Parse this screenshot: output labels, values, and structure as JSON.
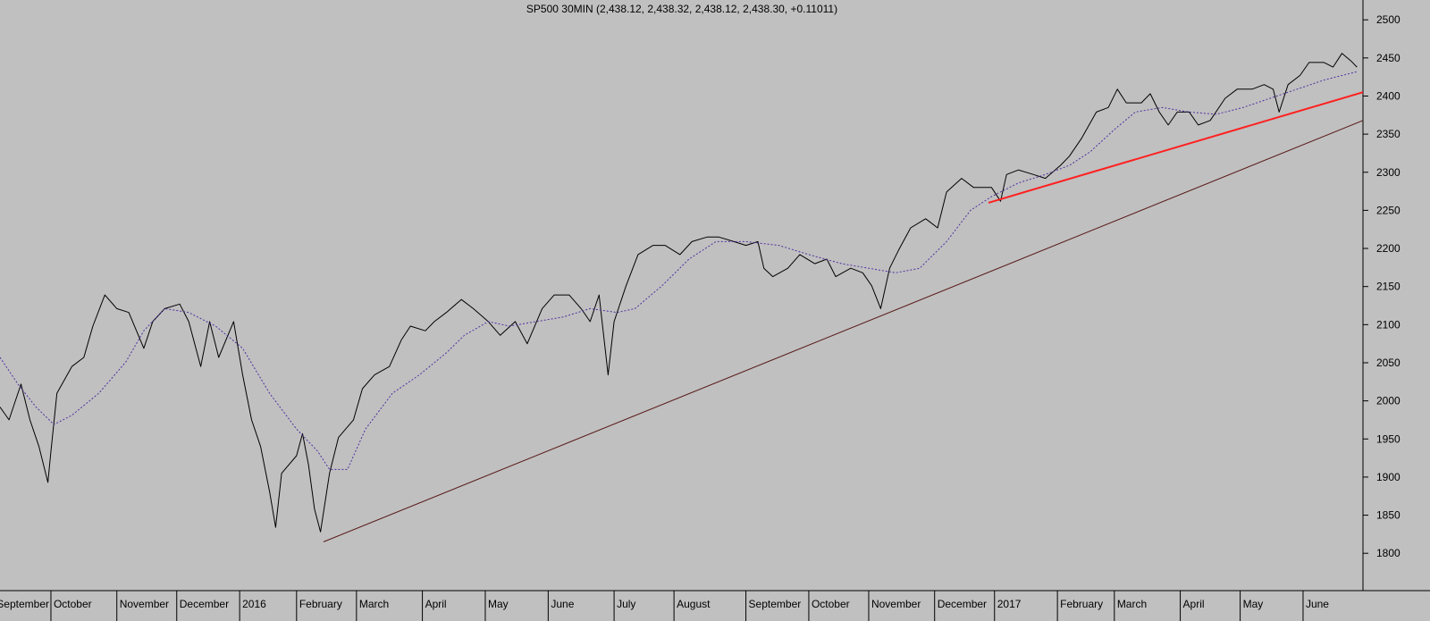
{
  "chart_data": {
    "type": "line",
    "title": "SP500 30MIN (2,438.12, 2,438.32, 2,438.12, 2,438.30, +0.11011)",
    "xlim": [
      0,
      455
    ],
    "ylim": [
      1751,
      2526
    ],
    "yticks": [
      1800,
      1850,
      1900,
      1950,
      2000,
      2050,
      2100,
      2150,
      2200,
      2250,
      2300,
      2350,
      2400,
      2450,
      2500
    ],
    "xticks": [
      {
        "value": -2,
        "label": "September"
      },
      {
        "value": 17,
        "label": "October"
      },
      {
        "value": 39,
        "label": "November"
      },
      {
        "value": 59,
        "label": "December"
      },
      {
        "value": 80,
        "label": "2016"
      },
      {
        "value": 99,
        "label": "February"
      },
      {
        "value": 119,
        "label": "March"
      },
      {
        "value": 141,
        "label": "April"
      },
      {
        "value": 162,
        "label": "May"
      },
      {
        "value": 183,
        "label": "June"
      },
      {
        "value": 205,
        "label": "July"
      },
      {
        "value": 225,
        "label": "August"
      },
      {
        "value": 249,
        "label": "September"
      },
      {
        "value": 270,
        "label": "October"
      },
      {
        "value": 290,
        "label": "November"
      },
      {
        "value": 312,
        "label": "December"
      },
      {
        "value": 332,
        "label": "2017"
      },
      {
        "value": 353,
        "label": "February"
      },
      {
        "value": 372,
        "label": "March"
      },
      {
        "value": 394,
        "label": "April"
      },
      {
        "value": 414,
        "label": "May"
      },
      {
        "value": 435,
        "label": "June"
      }
    ],
    "series": [
      {
        "color": "#000000",
        "x": [
          0,
          3,
          7,
          10,
          13,
          16,
          17,
          19,
          24,
          28,
          31,
          35,
          39,
          43,
          48,
          51,
          55,
          60,
          63,
          67,
          70,
          73,
          78,
          81,
          84,
          87,
          90,
          92,
          94,
          99,
          101,
          103,
          105,
          107,
          110,
          113,
          118,
          121,
          125,
          130,
          134,
          137,
          142,
          145,
          149,
          154,
          158,
          163,
          167,
          172,
          176,
          181,
          185,
          190,
          194,
          197,
          200,
          203,
          205,
          209,
          213,
          218,
          222,
          227,
          231,
          236,
          240,
          245,
          249,
          253,
          255,
          258,
          263,
          267,
          272,
          276,
          279,
          284,
          288,
          291,
          294,
          297,
          300,
          304,
          309,
          313,
          316,
          321,
          325,
          328,
          331,
          334,
          336,
          340,
          345,
          349,
          354,
          357,
          361,
          366,
          370,
          373,
          376,
          381,
          384,
          387,
          390,
          393,
          397,
          400,
          404,
          409,
          413,
          418,
          422,
          425,
          427,
          430,
          434,
          437,
          442,
          445,
          448,
          451,
          453
        ],
        "values": [
          1992,
          1975,
          2022,
          1975,
          1940,
          1893,
          1934,
          2010,
          2045,
          2057,
          2098,
          2139,
          2121,
          2116,
          2069,
          2104,
          2121,
          2127,
          2104,
          2045,
          2104,
          2057,
          2104,
          2034,
          1975,
          1940,
          1881,
          1834,
          1905,
          1928,
          1957,
          1916,
          1858,
          1828,
          1905,
          1952,
          1975,
          2016,
          2034,
          2045,
          2080,
          2098,
          2092,
          2104,
          2116,
          2133,
          2121,
          2104,
          2086,
          2104,
          2075,
          2121,
          2139,
          2139,
          2121,
          2104,
          2139,
          2034,
          2104,
          2151,
          2192,
          2204,
          2204,
          2192,
          2209,
          2215,
          2215,
          2209,
          2204,
          2209,
          2174,
          2163,
          2174,
          2192,
          2180,
          2186,
          2163,
          2174,
          2168,
          2151,
          2121,
          2174,
          2198,
          2227,
          2239,
          2227,
          2274,
          2292,
          2280,
          2280,
          2280,
          2262,
          2297,
          2303,
          2297,
          2292,
          2309,
          2321,
          2344,
          2379,
          2385,
          2409,
          2391,
          2391,
          2403,
          2379,
          2362,
          2379,
          2379,
          2362,
          2368,
          2397,
          2409,
          2409,
          2415,
          2409,
          2379,
          2415,
          2427,
          2444,
          2444,
          2438,
          2456,
          2446,
          2438
        ]
      },
      {
        "color": "#5030a0",
        "dashed": true,
        "x": [
          0,
          6,
          12,
          18,
          24,
          33,
          42,
          48,
          55,
          63,
          72,
          81,
          90,
          99,
          106,
          110,
          116,
          122,
          131,
          140,
          149,
          155,
          163,
          170,
          179,
          188,
          197,
          206,
          212,
          221,
          230,
          239,
          249,
          260,
          270,
          281,
          290,
          299,
          307,
          316,
          324,
          331,
          340,
          349,
          357,
          364,
          372,
          379,
          388,
          397,
          406,
          415,
          424,
          433,
          442,
          451,
          453
        ],
        "values": [
          2057,
          2022,
          1992,
          1969,
          1981,
          2010,
          2051,
          2092,
          2121,
          2116,
          2098,
          2069,
          2010,
          1963,
          1934,
          1910,
          1910,
          1963,
          2010,
          2034,
          2063,
          2086,
          2104,
          2098,
          2104,
          2110,
          2121,
          2116,
          2121,
          2151,
          2186,
          2209,
          2209,
          2204,
          2192,
          2180,
          2174,
          2168,
          2174,
          2209,
          2250,
          2268,
          2286,
          2297,
          2309,
          2327,
          2356,
          2379,
          2385,
          2379,
          2376,
          2385,
          2397,
          2409,
          2421,
          2430,
          2432
        ]
      },
      {
        "color": "#5a1a1a",
        "x": [
          108,
          455
        ],
        "values": [
          1815,
          2368
        ]
      },
      {
        "color": "#ff2020",
        "width": 2,
        "x": [
          330,
          455
        ],
        "values": [
          2260,
          2405
        ]
      }
    ]
  }
}
